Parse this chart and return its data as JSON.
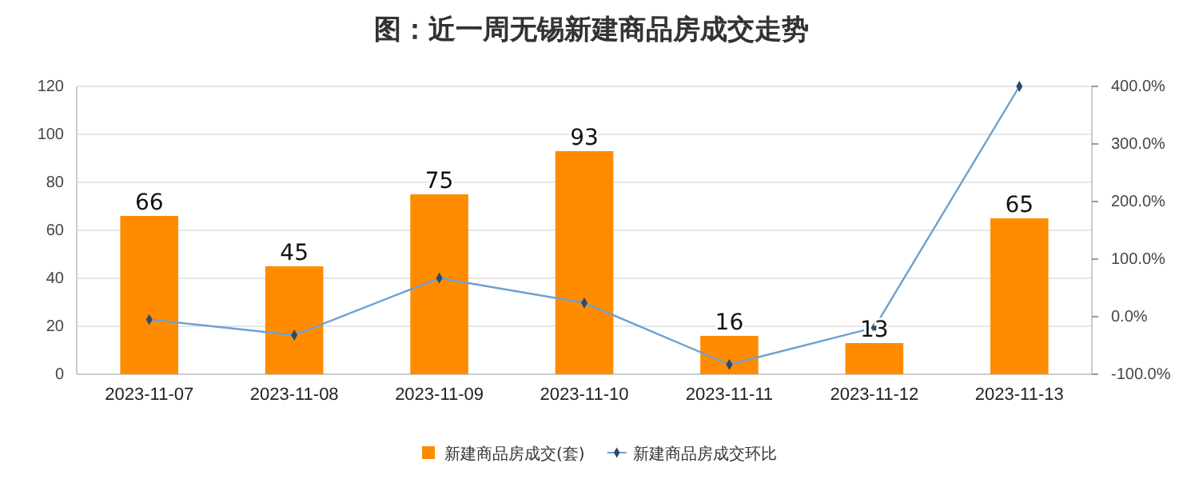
{
  "chart_data": {
    "type": "bar",
    "title": "图：近一周无锡新建商品房成交走势",
    "categories": [
      "2023-11-07",
      "2023-11-08",
      "2023-11-09",
      "2023-11-10",
      "2023-11-11",
      "2023-11-12",
      "2023-11-13"
    ],
    "series": [
      {
        "name": "新建商品房成交(套)",
        "color": "#ff8c00",
        "values": [
          66,
          45,
          75,
          93,
          16,
          13,
          65
        ],
        "data_labels": true
      },
      {
        "name": "新建商品房成交环比",
        "type": "line",
        "axis": "y2",
        "color": "#6fa0cf",
        "marker": "diamond",
        "values": [
          -5,
          -32,
          67,
          24,
          -83,
          -19,
          400
        ]
      }
    ],
    "ylim": [
      0,
      120
    ],
    "yticks": [
      0,
      20,
      40,
      60,
      80,
      100,
      120
    ],
    "y2lim": [
      -100,
      400
    ],
    "y2ticks": [
      {
        "value": -100,
        "label": "-100.0%"
      },
      {
        "value": 0,
        "label": "0.0%"
      },
      {
        "value": 100,
        "label": "100.0%"
      },
      {
        "value": 200,
        "label": "200.0%"
      },
      {
        "value": 300,
        "label": "300.0%"
      },
      {
        "value": 400,
        "label": "400.0%"
      }
    ],
    "grid": "y",
    "legend": "bottom"
  }
}
